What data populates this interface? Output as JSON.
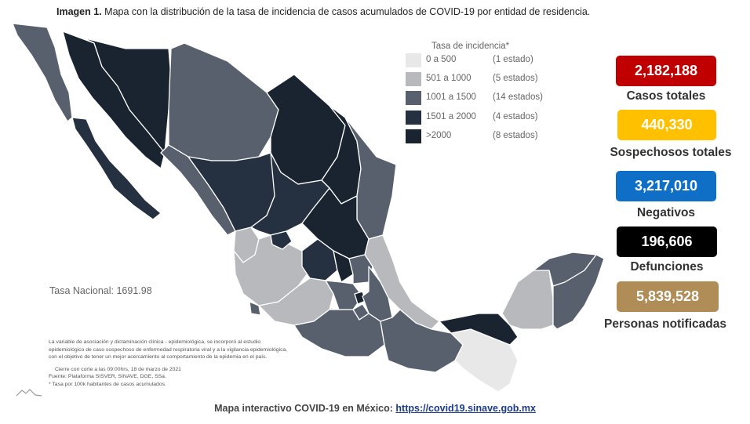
{
  "caption": {
    "bold": "Imagen 1.",
    "text": "Mapa con la distribución de la tasa de incidencia de casos acumulados de COVID-19 por entidad de residencia."
  },
  "legend": {
    "title": "Tasa de incidencia*",
    "items": [
      {
        "range": "0 a   500",
        "count": "(1 estado)",
        "color": "#e8e8e8"
      },
      {
        "range": "501 a  1000",
        "count": "(5 estados)",
        "color": "#b7b9bd"
      },
      {
        "range": "1001 a  1500",
        "count": "(14 estados)",
        "color": "#57606c"
      },
      {
        "range": "1501 a  2000",
        "count": "(4 estados)",
        "color": "#253040"
      },
      {
        "range": ">2000",
        "count": "(8 estados)",
        "color": "#1a2330"
      }
    ]
  },
  "tasa_nacional": "Tasa Nacional: 1691.98",
  "footnotes": {
    "paragraph": [
      "La variable de asociación y dictaminación clínica - epidemiológica, se incorporó al estudio",
      "epidemiológico de caso sospechoso de enfermedad respiratoria viral y a la vigilancia epidemiológica,",
      "con el objetivo de tener un mejor acercamiento al comportamiento de la epidemia en el país."
    ],
    "cutoff": "Cierre con corte a las 09:00hrs, 18 de marzo de 2021",
    "source": "Fuente: Plataforma SISVER, SINAVE, DGE, SSa.",
    "note": "* Tasa por 100k habitantes de casos acumulados."
  },
  "stats": [
    {
      "value": "2,182,188",
      "label": "Casos totales",
      "bg": "#c00000",
      "fg": "#ffffff"
    },
    {
      "value": "440,330",
      "label": "Sospechosos totales",
      "bg": "#ffc000",
      "fg": "#ffffff"
    },
    {
      "value": "3,217,010",
      "label": "Negativos",
      "bg": "#0f6fc6",
      "fg": "#ffffff"
    },
    {
      "value": "196,606",
      "label": "Defunciones",
      "bg": "#000000",
      "fg": "#ffffff"
    },
    {
      "value": "5,839,528",
      "label": "Personas notificadas",
      "bg": "#b08d57",
      "fg": "#ffffff"
    }
  ],
  "bottom": {
    "text": "Mapa interactivo COVID-19 en México: ",
    "link": "https://covid19.sinave.gob.mx"
  }
}
